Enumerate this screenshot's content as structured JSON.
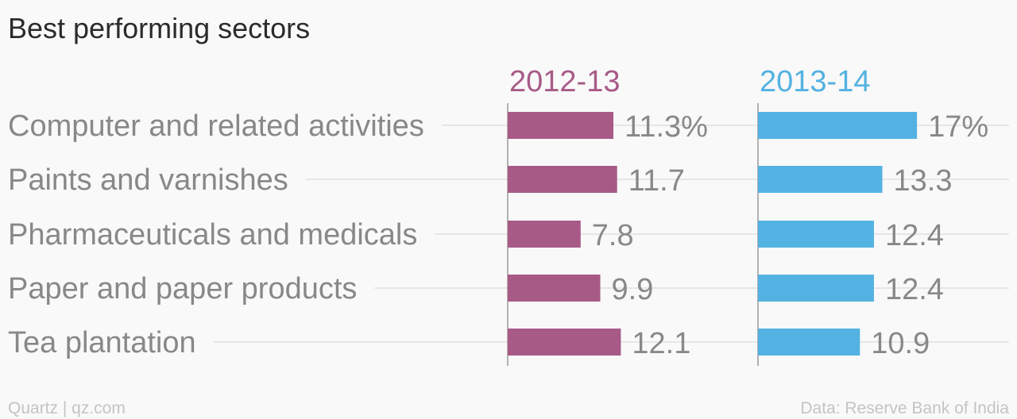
{
  "chart_data": {
    "type": "bar",
    "title": "Best performing sectors",
    "categories": [
      "Computer and related activities",
      "Paints and varnishes",
      "Pharmaceuticals and medicals",
      "Paper and paper products",
      "Tea plantation"
    ],
    "series": [
      {
        "name": "2012-13",
        "color": "#a85a87",
        "values": [
          11.3,
          11.7,
          7.8,
          9.9,
          12.1
        ],
        "labels": [
          "11.3%",
          "11.7",
          "7.8",
          "9.9",
          "12.1"
        ]
      },
      {
        "name": "2013-14",
        "color": "#53b2e2",
        "values": [
          17,
          13.3,
          12.4,
          12.4,
          10.9
        ],
        "labels": [
          "17%",
          "13.3",
          "12.4",
          "12.4",
          "10.9"
        ]
      }
    ],
    "xlim": [
      0,
      20
    ],
    "legend": "top",
    "grid": true
  },
  "footer": {
    "source_left": "Quartz | qz.com",
    "source_right": "Data: Reserve Bank of India"
  }
}
